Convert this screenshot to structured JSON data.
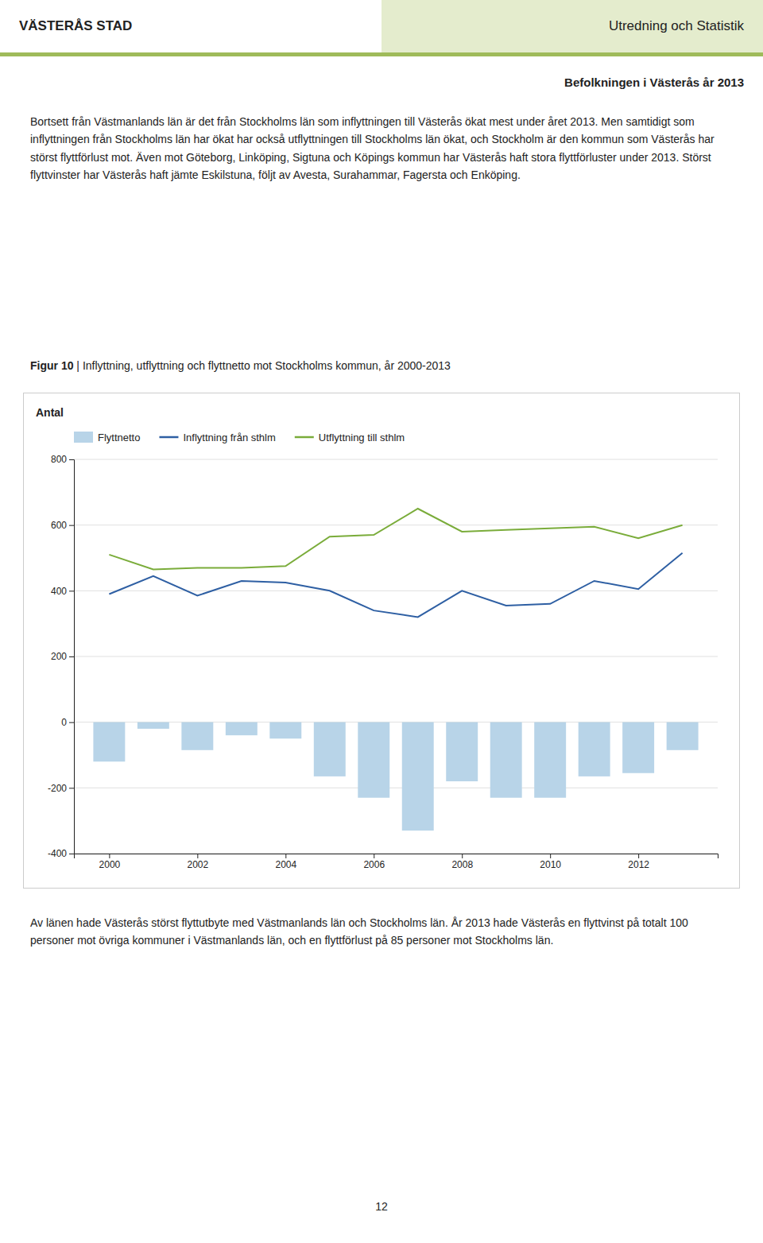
{
  "header_left": "VÄSTERÅS STAD",
  "header_right": "Utredning och Statistik",
  "subheader": "Befolkningen i Västerås år 2013",
  "paragraph": "Bortsett från Västmanlands län är det från Stockholms län som inflyttningen till Västerås ökat mest under året 2013. Men samtidigt som inflyttningen från Stockholms län har ökat har också utflyttningen till Stockholms län ökat, och Stockholm är den kommun som Västerås har störst flyttförlust mot. Även mot Göteborg, Linköping, Sigtuna och Köpings kommun har Västerås haft stora flyttförluster under 2013. Störst flyttvinster har Västerås haft jämte Eskilstuna, följt av Avesta, Surahammar, Fagersta och Enköping.",
  "footer": "Av länen hade Västerås störst flyttutbyte med Västmanlands län och Stockholms län. År 2013 hade Västerås en flyttvinst på totalt 100 personer mot övriga kommuner i Västmanlands län, och en flyttförlust på 85 personer mot Stockholms län.",
  "page_number": "12",
  "chart_data": {
    "type": "bar",
    "title": "Figur 10",
    "subtitle": "| Inflyttning, utflyttning och flyttnetto mot Stockholms kommun, år 2000-2013",
    "y_label": "Antal",
    "x": [
      2000,
      2001,
      2002,
      2003,
      2004,
      2005,
      2006,
      2007,
      2008,
      2009,
      2010,
      2011,
      2012,
      2013
    ],
    "series": [
      {
        "name": "Flyttnetto",
        "type": "bar",
        "color": "#b8d4e8",
        "values": [
          -120,
          -20,
          -85,
          -40,
          -50,
          -165,
          -230,
          -330,
          -180,
          -230,
          -230,
          -165,
          -155,
          -85
        ]
      },
      {
        "name": "Inflyttning från sthlm",
        "type": "line",
        "color": "#2e5fa3",
        "values": [
          390,
          445,
          385,
          430,
          425,
          400,
          340,
          320,
          400,
          355,
          360,
          430,
          405,
          515
        ]
      },
      {
        "name": "Utflyttning till sthlm",
        "type": "line",
        "color": "#7aac3a",
        "values": [
          510,
          465,
          470,
          470,
          475,
          565,
          570,
          650,
          580,
          585,
          590,
          595,
          560,
          600
        ]
      }
    ],
    "xlim": [
      1999.2,
      2013.8
    ],
    "xticks": [
      2000,
      2002,
      2004,
      2006,
      2008,
      2010,
      2012
    ],
    "ylim": [
      -400,
      800
    ],
    "yticks": [
      -400,
      -200,
      0,
      200,
      400,
      600,
      800
    ],
    "grid": true,
    "legend": "top"
  }
}
